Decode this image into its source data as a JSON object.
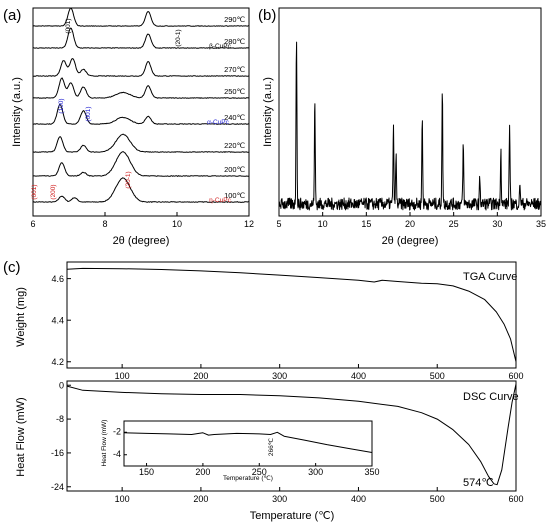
{
  "chart_data": [
    {
      "panel": "(a)",
      "type": "line",
      "xlabel": "2θ (degree)",
      "ylabel": "Intensity (a.u.)",
      "xlim": [
        6,
        12
      ],
      "xticks": [
        "6",
        "8",
        "10",
        "12"
      ],
      "series": [
        {
          "name": "100℃",
          "peaks": [
            [
              6.8,
              0.25
            ],
            [
              7.15,
              0.18
            ],
            [
              8.5,
              1.0
            ]
          ]
        },
        {
          "name": "200℃",
          "peaks": [
            [
              6.8,
              0.55
            ],
            [
              7.4,
              0.15
            ],
            [
              8.5,
              1.0
            ]
          ]
        },
        {
          "name": "220℃",
          "peaks": [
            [
              6.75,
              0.7
            ],
            [
              7.4,
              0.3
            ],
            [
              8.5,
              0.8
            ]
          ]
        },
        {
          "name": "240℃",
          "peaks": [
            [
              6.75,
              0.9
            ],
            [
              7.4,
              0.6
            ],
            [
              8.5,
              0.3
            ],
            [
              9.2,
              0.35
            ]
          ]
        },
        {
          "name": "250℃",
          "peaks": [
            [
              6.8,
              0.9
            ],
            [
              7.05,
              0.7
            ],
            [
              7.4,
              0.5
            ],
            [
              8.5,
              0.25
            ],
            [
              9.2,
              0.55
            ]
          ]
        },
        {
          "name": "270℃",
          "peaks": [
            [
              6.85,
              0.7
            ],
            [
              7.1,
              0.8
            ],
            [
              7.4,
              0.3
            ],
            [
              9.2,
              0.65
            ]
          ]
        },
        {
          "name": "280℃",
          "peaks": [
            [
              7.05,
              1.0
            ],
            [
              9.2,
              0.7
            ]
          ]
        },
        {
          "name": "290℃",
          "peaks": [
            [
              7.05,
              1.0
            ],
            [
              9.2,
              0.8
            ]
          ]
        }
      ],
      "annotations": [
        {
          "text": "(001)",
          "color": "#000000"
        },
        {
          "text": "(20-1)",
          "color": "#000000"
        },
        {
          "text": "β-CuPc",
          "color": "#000000"
        },
        {
          "text": "(100)",
          "color": "#1f1fd0"
        },
        {
          "text": "(001)",
          "color": "#1f1fd0"
        },
        {
          "text": "α-CuPc",
          "color": "#1f1fd0"
        },
        {
          "text": "(001)",
          "color": "#d01f1f"
        },
        {
          "text": "(200)",
          "color": "#d01f1f"
        },
        {
          "text": "(20-1)",
          "color": "#d01f1f"
        },
        {
          "text": "η-CuPc",
          "color": "#d01f1f"
        }
      ]
    },
    {
      "panel": "(b)",
      "type": "line",
      "xlabel": "2θ (degree)",
      "ylabel": "Intensity (a.u.)",
      "xlim": [
        5,
        35
      ],
      "xticks": [
        "5",
        "10",
        "15",
        "20",
        "25",
        "30",
        "35"
      ],
      "peaks": [
        [
          7.0,
          1.0
        ],
        [
          9.1,
          0.6
        ],
        [
          18.1,
          0.45
        ],
        [
          18.4,
          0.28
        ],
        [
          21.4,
          0.5
        ],
        [
          23.7,
          0.65
        ],
        [
          26.1,
          0.35
        ],
        [
          28.0,
          0.15
        ],
        [
          30.4,
          0.32
        ],
        [
          31.4,
          0.45
        ],
        [
          32.6,
          0.12
        ]
      ]
    },
    {
      "panel": "(c)",
      "type": "line",
      "title": "TGA Curve",
      "ylabel": "Weight (mg)",
      "xlim": [
        30,
        600
      ],
      "ylim": [
        4.17,
        4.68
      ],
      "xticks": [
        "100",
        "200",
        "300",
        "400",
        "500",
        "600"
      ],
      "yticks": [
        "4.2",
        "4.4",
        "4.6"
      ],
      "x": [
        30,
        50,
        100,
        150,
        200,
        250,
        300,
        350,
        400,
        420,
        430,
        450,
        480,
        500,
        520,
        540,
        560,
        575,
        585,
        593,
        600
      ],
      "y": [
        4.645,
        4.649,
        4.648,
        4.644,
        4.637,
        4.628,
        4.617,
        4.605,
        4.592,
        4.584,
        4.592,
        4.586,
        4.578,
        4.575,
        4.565,
        4.54,
        4.5,
        4.44,
        4.38,
        4.31,
        4.2
      ]
    },
    {
      "type": "line",
      "title": "DSC Curve",
      "xlabel": "Temperature (℃)",
      "ylabel": "Heat Flow (mW)",
      "xlim": [
        30,
        600
      ],
      "ylim": [
        -25,
        1
      ],
      "xticks": [
        "100",
        "200",
        "300",
        "400",
        "500",
        "600"
      ],
      "yticks": [
        "0",
        "-8",
        "-16",
        "-24"
      ],
      "x": [
        30,
        50,
        100,
        150,
        200,
        250,
        300,
        350,
        400,
        450,
        480,
        500,
        520,
        540,
        555,
        565,
        572,
        576,
        582,
        590,
        595,
        600
      ],
      "y": [
        -0.2,
        -1.2,
        -1.7,
        -2.0,
        -2.2,
        -2.2,
        -2.5,
        -3.0,
        -3.8,
        -5.0,
        -6.5,
        -8.0,
        -10.5,
        -14.0,
        -18.0,
        -21.5,
        -23.3,
        -23.5,
        -20.0,
        -10.0,
        -4.0,
        0.3
      ],
      "annotations": [
        "574℃"
      ]
    },
    {
      "type": "line",
      "inset": true,
      "xlabel": "Temperature (℃)",
      "ylabel": "Heat Flow (mW)",
      "xlim": [
        130,
        350
      ],
      "ylim": [
        -5,
        -1
      ],
      "xticks": [
        "150",
        "200",
        "250",
        "300",
        "350"
      ],
      "yticks": [
        "-2",
        "-4"
      ],
      "x": [
        130,
        150,
        170,
        190,
        200,
        205,
        210,
        230,
        250,
        260,
        266,
        272,
        290,
        310,
        330,
        350
      ],
      "y": [
        -2.05,
        -2.1,
        -2.15,
        -2.2,
        -2.05,
        -2.25,
        -2.2,
        -2.1,
        -2.15,
        -2.2,
        -2.0,
        -2.35,
        -2.7,
        -3.1,
        -3.45,
        -3.8
      ],
      "annotations": [
        "266℃"
      ]
    }
  ]
}
